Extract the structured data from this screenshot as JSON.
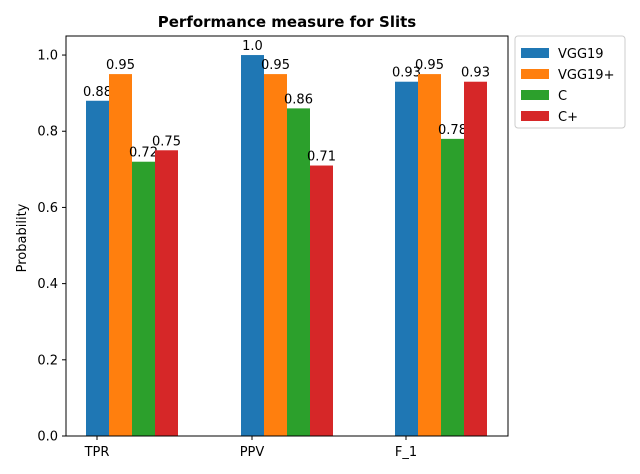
{
  "chart_data": {
    "type": "bar",
    "title": "Performance measure for Slits",
    "xlabel": "",
    "ylabel": "Probability",
    "categories": [
      "TPR",
      "PPV",
      "F_1"
    ],
    "ylim": [
      0,
      1.05
    ],
    "yticks": [
      0.0,
      0.2,
      0.4,
      0.6,
      0.8,
      1.0
    ],
    "ytick_labels": [
      "0.0",
      "0.2",
      "0.4",
      "0.6",
      "0.8",
      "1.0"
    ],
    "grid": false,
    "legend_position": "outside-top-right",
    "series": [
      {
        "name": "VGG19",
        "color": "#1f77b4",
        "values": [
          0.88,
          1.0,
          0.93
        ],
        "value_labels": [
          "0.88",
          "1.0",
          "0.93"
        ]
      },
      {
        "name": "VGG19+",
        "color": "#ff7f0e",
        "values": [
          0.95,
          0.95,
          0.95
        ],
        "value_labels": [
          "0.95",
          "0.95",
          "0.95"
        ]
      },
      {
        "name": "C",
        "color": "#2ca02c",
        "values": [
          0.72,
          0.86,
          0.78
        ],
        "value_labels": [
          "0.72",
          "0.86",
          "0.78"
        ]
      },
      {
        "name": "C+",
        "color": "#d62728",
        "values": [
          0.75,
          0.71,
          0.93
        ],
        "value_labels": [
          "0.75",
          "0.71",
          "0.93"
        ]
      }
    ]
  }
}
